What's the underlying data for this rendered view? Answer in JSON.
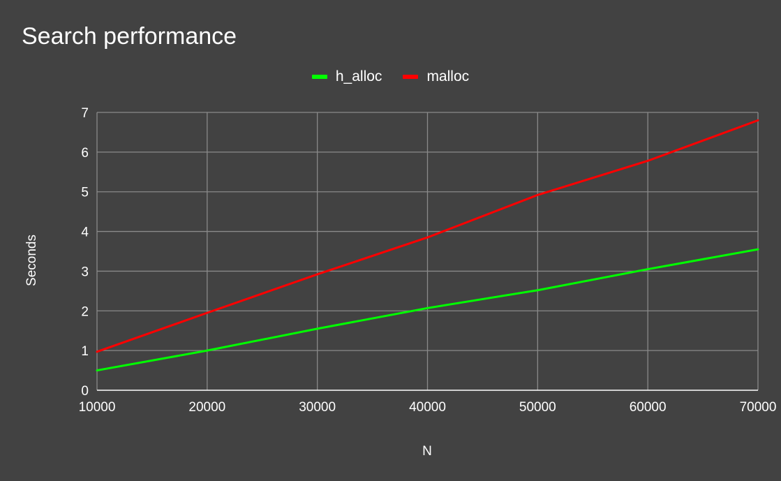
{
  "chart_data": {
    "type": "line",
    "title": "Search performance",
    "xlabel": "N",
    "ylabel": "Seconds",
    "x": [
      10000,
      20000,
      30000,
      40000,
      50000,
      60000,
      70000
    ],
    "xlim": [
      10000,
      70000
    ],
    "ylim": [
      0,
      7
    ],
    "x_ticks": [
      "10000",
      "20000",
      "30000",
      "40000",
      "50000",
      "60000",
      "70000"
    ],
    "y_ticks": [
      "0",
      "1",
      "2",
      "3",
      "4",
      "5",
      "6",
      "7"
    ],
    "grid": true,
    "legend_position": "top",
    "series": [
      {
        "name": "h_alloc",
        "color": "#00ff00",
        "values": [
          0.5,
          1.0,
          1.55,
          2.07,
          2.52,
          3.05,
          3.55
        ]
      },
      {
        "name": "malloc",
        "color": "#ff0000",
        "values": [
          0.97,
          1.95,
          2.92,
          3.85,
          4.92,
          5.78,
          6.8
        ]
      }
    ]
  }
}
